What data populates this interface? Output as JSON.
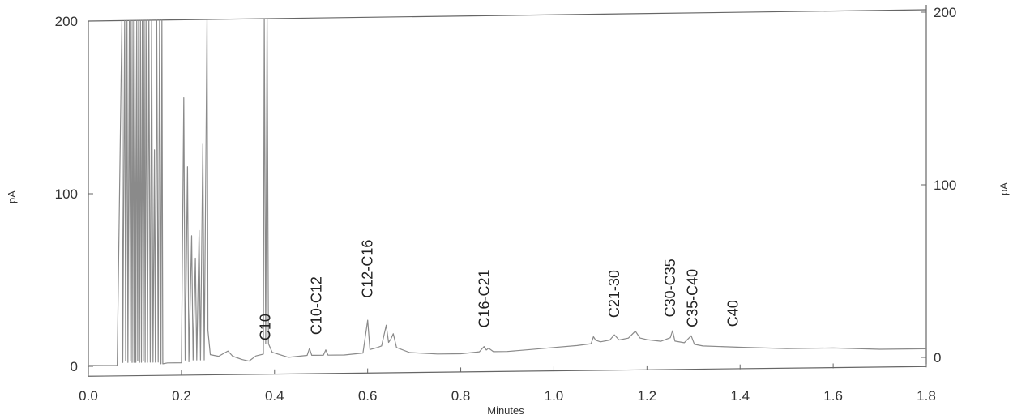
{
  "colors": {
    "trace": "#8a8a8a",
    "axis": "#666666",
    "text": "#333333"
  },
  "chart_data": {
    "type": "line",
    "title": "",
    "xlabel": "Minutes",
    "ylabel_left": "pA",
    "ylabel_right": "pA",
    "xlim": [
      0.0,
      1.8
    ],
    "ylim": [
      -2,
      200
    ],
    "xticks": [
      "0.0",
      "0.2",
      "0.4",
      "0.6",
      "0.8",
      "1.0",
      "1.2",
      "1.4",
      "1.6",
      "1.8"
    ],
    "yticks_left": [
      "0",
      "100",
      "200"
    ],
    "yticks_right": [
      "0",
      "100",
      "200"
    ],
    "grid": false,
    "series": [
      {
        "points": [
          [
            0.0,
            0.5
          ],
          [
            0.06,
            0.3
          ],
          [
            0.062,
            0.5
          ],
          [
            0.072,
            200
          ],
          [
            0.074,
            2
          ],
          [
            0.078,
            200
          ],
          [
            0.08,
            3
          ],
          [
            0.083,
            200
          ],
          [
            0.085,
            2
          ],
          [
            0.088,
            200
          ],
          [
            0.09,
            3
          ],
          [
            0.092,
            200
          ],
          [
            0.094,
            2
          ],
          [
            0.096,
            200
          ],
          [
            0.098,
            2
          ],
          [
            0.1,
            200
          ],
          [
            0.102,
            2
          ],
          [
            0.104,
            200
          ],
          [
            0.106,
            3
          ],
          [
            0.108,
            200
          ],
          [
            0.11,
            2
          ],
          [
            0.112,
            200
          ],
          [
            0.114,
            2
          ],
          [
            0.116,
            200
          ],
          [
            0.118,
            3
          ],
          [
            0.12,
            200
          ],
          [
            0.122,
            2
          ],
          [
            0.124,
            200
          ],
          [
            0.127,
            2
          ],
          [
            0.13,
            200
          ],
          [
            0.133,
            2
          ],
          [
            0.136,
            200
          ],
          [
            0.139,
            2
          ],
          [
            0.142,
            125
          ],
          [
            0.144,
            2
          ],
          [
            0.147,
            200
          ],
          [
            0.15,
            2
          ],
          [
            0.153,
            200
          ],
          [
            0.156,
            1
          ],
          [
            0.158,
            200
          ],
          [
            0.16,
            1
          ],
          [
            0.17,
            1.5
          ],
          [
            0.2,
            1.5
          ],
          [
            0.205,
            155
          ],
          [
            0.208,
            3
          ],
          [
            0.213,
            115
          ],
          [
            0.216,
            2
          ],
          [
            0.222,
            75
          ],
          [
            0.225,
            3
          ],
          [
            0.23,
            62
          ],
          [
            0.233,
            3
          ],
          [
            0.238,
            78
          ],
          [
            0.241,
            3
          ],
          [
            0.246,
            128
          ],
          [
            0.249,
            3
          ],
          [
            0.255,
            200
          ],
          [
            0.257,
            20
          ],
          [
            0.262,
            6
          ],
          [
            0.28,
            5
          ],
          [
            0.3,
            8
          ],
          [
            0.31,
            5
          ],
          [
            0.33,
            3
          ],
          [
            0.345,
            2
          ],
          [
            0.36,
            5
          ],
          [
            0.376,
            6
          ],
          [
            0.378,
            200
          ],
          [
            0.381,
            12
          ],
          [
            0.384,
            200
          ],
          [
            0.387,
            12
          ],
          [
            0.395,
            7
          ],
          [
            0.43,
            4
          ],
          [
            0.47,
            5
          ],
          [
            0.475,
            9
          ],
          [
            0.48,
            5
          ],
          [
            0.505,
            5
          ],
          [
            0.51,
            8
          ],
          [
            0.515,
            5
          ],
          [
            0.55,
            5
          ],
          [
            0.59,
            6
          ],
          [
            0.6,
            25
          ],
          [
            0.605,
            8
          ],
          [
            0.62,
            9
          ],
          [
            0.63,
            10
          ],
          [
            0.64,
            22
          ],
          [
            0.645,
            12
          ],
          [
            0.65,
            14
          ],
          [
            0.655,
            17
          ],
          [
            0.662,
            9
          ],
          [
            0.69,
            6
          ],
          [
            0.75,
            5
          ],
          [
            0.8,
            5
          ],
          [
            0.84,
            6
          ],
          [
            0.85,
            9
          ],
          [
            0.855,
            7
          ],
          [
            0.86,
            8
          ],
          [
            0.87,
            6
          ],
          [
            0.9,
            6
          ],
          [
            0.95,
            7
          ],
          [
            1.0,
            8
          ],
          [
            1.05,
            9
          ],
          [
            1.08,
            10
          ],
          [
            1.085,
            14
          ],
          [
            1.09,
            12
          ],
          [
            1.1,
            11
          ],
          [
            1.12,
            12
          ],
          [
            1.13,
            15
          ],
          [
            1.14,
            12
          ],
          [
            1.16,
            13
          ],
          [
            1.175,
            17
          ],
          [
            1.185,
            13
          ],
          [
            1.2,
            12
          ],
          [
            1.23,
            11
          ],
          [
            1.25,
            13
          ],
          [
            1.255,
            17
          ],
          [
            1.26,
            11
          ],
          [
            1.28,
            10
          ],
          [
            1.295,
            14
          ],
          [
            1.302,
            9
          ],
          [
            1.32,
            8
          ],
          [
            1.4,
            7
          ],
          [
            1.5,
            6
          ],
          [
            1.6,
            6
          ],
          [
            1.7,
            5
          ],
          [
            1.8,
            5
          ]
        ]
      }
    ],
    "annotations": [
      {
        "text": "C10",
        "x": 0.38,
        "y": 12
      },
      {
        "text": "C10-C12",
        "x": 0.49,
        "y": 15
      },
      {
        "text": "C12-C16",
        "x": 0.6,
        "y": 36
      },
      {
        "text": "C16-C21",
        "x": 0.85,
        "y": 18
      },
      {
        "text": "C21-30",
        "x": 1.13,
        "y": 23
      },
      {
        "text": "C30-C35",
        "x": 1.25,
        "y": 23
      },
      {
        "text": "C35-C40",
        "x": 1.298,
        "y": 17
      },
      {
        "text": "C40",
        "x": 1.385,
        "y": 17
      }
    ]
  }
}
